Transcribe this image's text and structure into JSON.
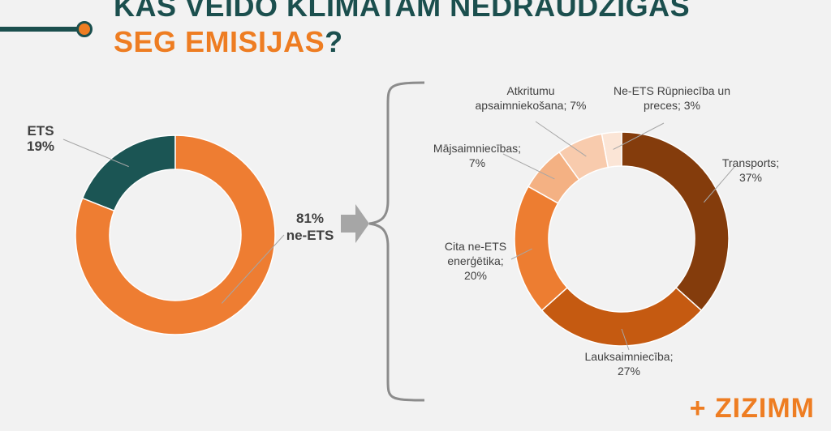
{
  "title": {
    "line1": "KAS VEIDO KLIMATAM NEDRAUDZĪGAS",
    "line2_orange": "SEG EMISIJAS",
    "line2_mark": "?"
  },
  "brand": "+ ZIZIMM",
  "colors": {
    "accent": "#ee7d22",
    "dark_teal": "#1b4f4e",
    "background": "#f2f2f2"
  },
  "chart_data": [
    {
      "type": "pie",
      "variant": "donut",
      "slices": [
        {
          "label": "ETS",
          "value": 19,
          "value_text": "19%",
          "color": "#1b5554"
        },
        {
          "label": "ne-ETS",
          "value": 81,
          "value_text": "81%",
          "color": "#ee7d32"
        }
      ]
    },
    {
      "type": "pie",
      "variant": "donut",
      "slices": [
        {
          "lines": [
            "Transports;",
            "37%"
          ],
          "value": 37,
          "color": "#843c0c"
        },
        {
          "lines": [
            "Lauksaimniecība;",
            "27%"
          ],
          "value": 27,
          "color": "#c55a11"
        },
        {
          "lines": [
            "Cita ne-ETS",
            "enerģētika;",
            "20%"
          ],
          "value": 20,
          "color": "#ed7d31"
        },
        {
          "lines": [
            "Mājsaimniecības;",
            "7%"
          ],
          "value": 7,
          "color": "#f4b183"
        },
        {
          "lines": [
            "Atkritumu",
            "apsaimniekošana; 7%"
          ],
          "value": 7,
          "color": "#f8cbad"
        },
        {
          "lines": [
            "Ne-ETS Rūpniecība un",
            "preces; 3%"
          ],
          "value": 3,
          "color": "#fbe5d6"
        }
      ]
    }
  ]
}
